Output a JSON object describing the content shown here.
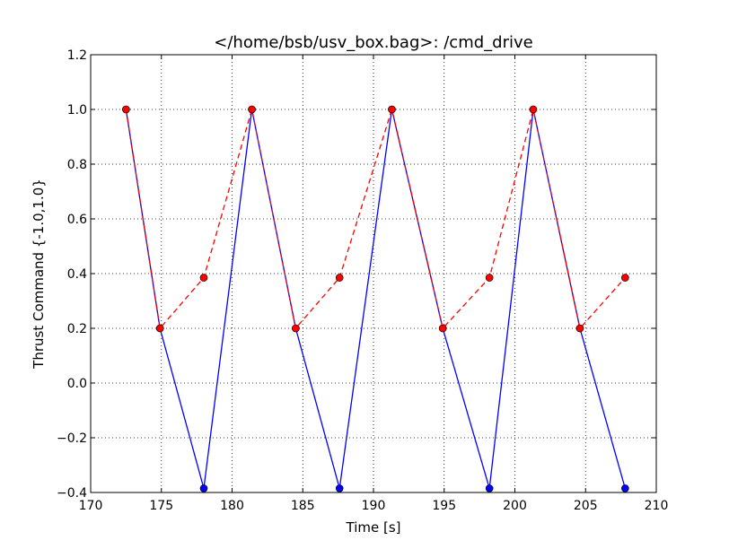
{
  "chart_data": {
    "type": "line",
    "title": "</home/bsb/usv_box.bag>: /cmd_drive",
    "xlabel": "Time [s]",
    "ylabel": "Thrust Command {-1.0,1.0}",
    "xlim": [
      170,
      210
    ],
    "ylim": [
      -0.4,
      1.2
    ],
    "xticks": [
      170,
      175,
      180,
      185,
      190,
      195,
      200,
      205,
      210
    ],
    "yticks": [
      -0.4,
      -0.2,
      0.0,
      0.2,
      0.4,
      0.6,
      0.8,
      1.0,
      1.2
    ],
    "xtick_labels": [
      "170",
      "175",
      "180",
      "185",
      "190",
      "195",
      "200",
      "205",
      "210"
    ],
    "ytick_labels": [
      "−0.4",
      "−0.2",
      "0.0",
      "0.2",
      "0.4",
      "0.6",
      "0.8",
      "1.0",
      "1.2"
    ],
    "grid": true,
    "series": [
      {
        "color": "#0000ff",
        "line_style": "solid",
        "marker": "circle",
        "x": [
          172.5,
          174.9,
          178.0,
          181.4,
          184.5,
          187.6,
          191.3,
          194.9,
          198.2,
          201.3,
          204.6,
          207.8
        ],
        "y": [
          1.0,
          0.2,
          -0.385,
          1.0,
          0.2,
          -0.385,
          1.0,
          0.2,
          -0.385,
          1.0,
          0.2,
          -0.385
        ]
      },
      {
        "color": "#ff0000",
        "line_style": "dashed",
        "marker": "circle",
        "x": [
          172.5,
          174.9,
          178.0,
          181.4,
          184.5,
          187.6,
          191.3,
          194.9,
          198.2,
          201.3,
          204.6,
          207.8
        ],
        "y": [
          1.0,
          0.2,
          0.385,
          1.0,
          0.2,
          0.385,
          1.0,
          0.2,
          0.385,
          1.0,
          0.2,
          0.385
        ]
      }
    ]
  }
}
